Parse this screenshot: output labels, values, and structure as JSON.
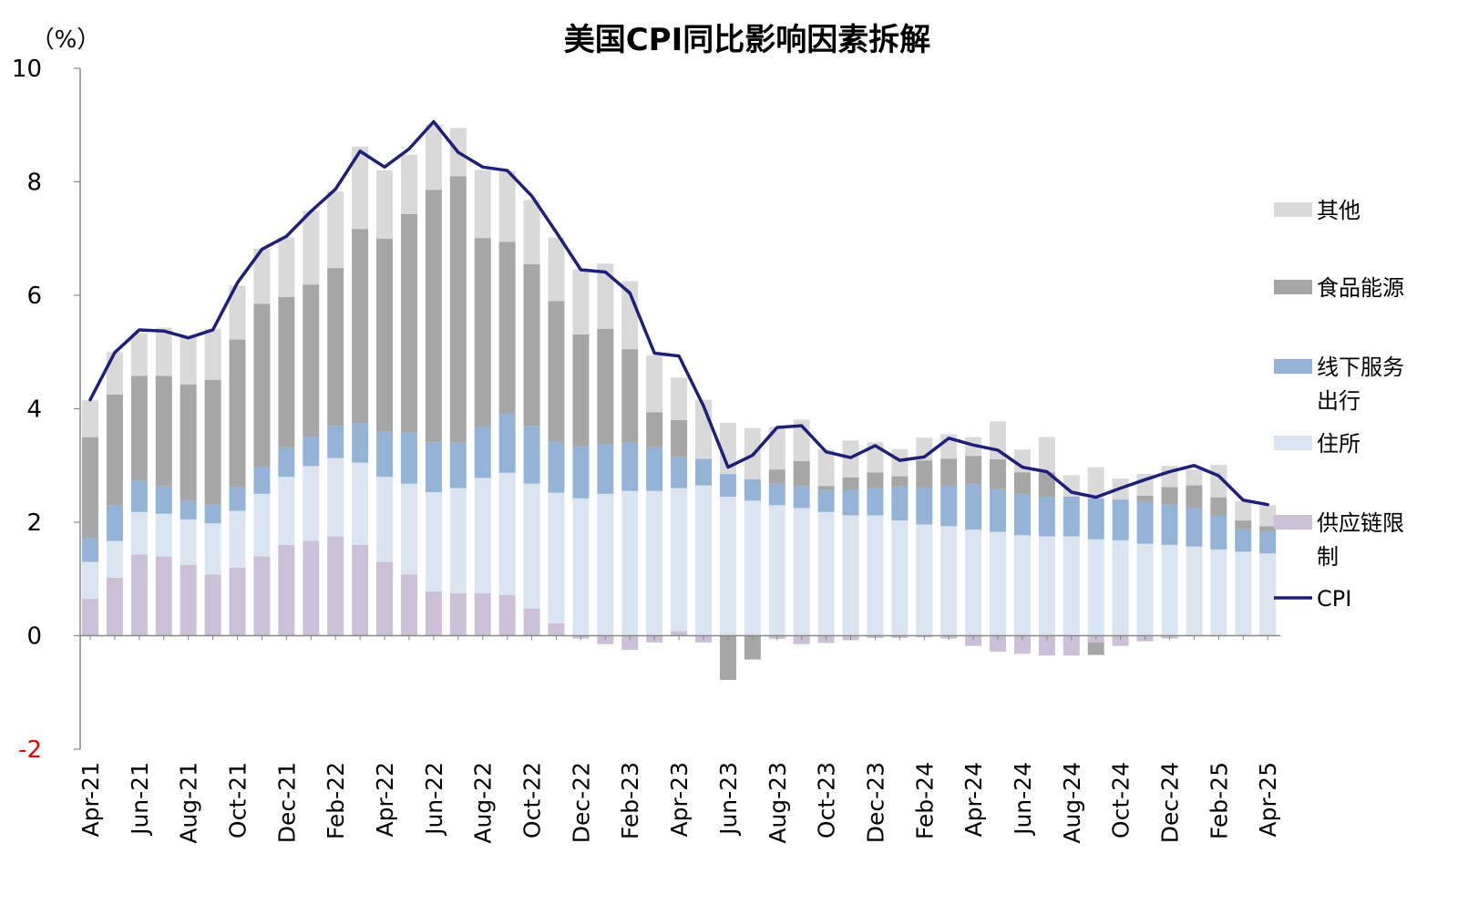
{
  "chart_data": {
    "type": "bar",
    "stacked": true,
    "title": "美国CPI同比影响因素拆解",
    "ylabel": "（%）",
    "ylim": [
      -2,
      10
    ],
    "yticks": [
      "-2",
      "0",
      "2",
      "4",
      "6",
      "8",
      "10"
    ],
    "grid": false,
    "legend_position": "right",
    "categories": [
      "Apr-21",
      "May-21",
      "Jun-21",
      "Jul-21",
      "Aug-21",
      "Sep-21",
      "Oct-21",
      "Nov-21",
      "Dec-21",
      "Jan-22",
      "Feb-22",
      "Mar-22",
      "Apr-22",
      "May-22",
      "Jun-22",
      "Jul-22",
      "Aug-22",
      "Sep-22",
      "Oct-22",
      "Nov-22",
      "Dec-22",
      "Jan-23",
      "Feb-23",
      "Mar-23",
      "Apr-23",
      "May-23",
      "Jun-23",
      "Jul-23",
      "Aug-23",
      "Sep-23",
      "Oct-23",
      "Nov-23",
      "Dec-23",
      "Jan-24",
      "Feb-24",
      "Mar-24",
      "Apr-24",
      "May-24",
      "Jun-24",
      "Jul-24",
      "Aug-24",
      "Sep-24",
      "Oct-24",
      "Nov-24",
      "Dec-24",
      "Jan-25",
      "Feb-25",
      "Mar-25",
      "Apr-25"
    ],
    "xtick_labels": [
      "Apr-21",
      "Jun-21",
      "Aug-21",
      "Oct-21",
      "Dec-21",
      "Feb-22",
      "Apr-22",
      "Jun-22",
      "Aug-22",
      "Oct-22",
      "Dec-22",
      "Feb-23",
      "Apr-23",
      "Jun-23",
      "Aug-23",
      "Oct-23",
      "Dec-23",
      "Feb-24",
      "Apr-24",
      "Jun-24",
      "Aug-24",
      "Oct-24",
      "Dec-24",
      "Feb-25",
      "Apr-25"
    ],
    "series": [
      {
        "name": "供应链限制",
        "color": "#ccc0d9",
        "values": [
          0.65,
          1.02,
          1.43,
          1.4,
          1.25,
          1.08,
          1.2,
          1.4,
          1.6,
          1.67,
          1.75,
          1.6,
          1.3,
          1.08,
          0.78,
          0.75,
          0.75,
          0.72,
          0.48,
          0.22,
          -0.05,
          -0.15,
          -0.25,
          -0.12,
          0.08,
          -0.12,
          0.0,
          0.0,
          -0.06,
          -0.15,
          -0.13,
          -0.08,
          -0.04,
          -0.04,
          -0.03,
          -0.05,
          -0.18,
          -0.28,
          -0.32,
          -0.35,
          -0.35,
          -0.12,
          -0.18,
          -0.1,
          -0.05,
          0.0,
          0.0,
          0.0,
          0.0
        ]
      },
      {
        "name": "住所",
        "color": "#dbe5f1",
        "values": [
          0.65,
          0.65,
          0.75,
          0.75,
          0.8,
          0.9,
          1.0,
          1.1,
          1.2,
          1.32,
          1.38,
          1.45,
          1.5,
          1.6,
          1.75,
          1.85,
          2.03,
          2.15,
          2.2,
          2.3,
          2.42,
          2.5,
          2.55,
          2.55,
          2.52,
          2.65,
          2.45,
          2.38,
          2.3,
          2.25,
          2.18,
          2.12,
          2.12,
          2.03,
          1.96,
          1.93,
          1.87,
          1.83,
          1.77,
          1.75,
          1.75,
          1.7,
          1.68,
          1.62,
          1.6,
          1.57,
          1.52,
          1.48,
          1.45
        ]
      },
      {
        "name": "线下服务出行",
        "color": "#95b3d7",
        "values": [
          0.42,
          0.63,
          0.55,
          0.48,
          0.33,
          0.33,
          0.42,
          0.47,
          0.52,
          0.52,
          0.57,
          0.7,
          0.8,
          0.9,
          0.88,
          0.8,
          0.9,
          1.05,
          1.02,
          0.9,
          0.92,
          0.88,
          0.85,
          0.77,
          0.55,
          0.47,
          0.4,
          0.38,
          0.38,
          0.38,
          0.38,
          0.45,
          0.48,
          0.6,
          0.65,
          0.72,
          0.8,
          0.75,
          0.73,
          0.7,
          0.7,
          0.72,
          0.72,
          0.75,
          0.72,
          0.68,
          0.6,
          0.4,
          0.38
        ]
      },
      {
        "name": "食品能源",
        "color": "#a6a6a6",
        "values": [
          1.78,
          1.95,
          1.85,
          1.95,
          2.05,
          2.2,
          2.6,
          2.88,
          2.65,
          2.68,
          2.78,
          3.42,
          3.4,
          3.85,
          4.45,
          4.7,
          3.33,
          3.02,
          2.85,
          2.48,
          1.97,
          2.03,
          1.65,
          0.62,
          0.65,
          0.0,
          -0.78,
          -0.42,
          0.25,
          0.45,
          0.08,
          0.22,
          0.28,
          0.18,
          0.48,
          0.47,
          0.5,
          0.53,
          0.38,
          0.43,
          0.0,
          -0.22,
          0.0,
          0.1,
          0.3,
          0.4,
          0.32,
          0.15,
          0.1
        ]
      },
      {
        "name": "其他",
        "color": "#d9d9d9",
        "values": [
          0.65,
          0.75,
          0.75,
          0.85,
          0.85,
          0.9,
          0.95,
          0.97,
          1.05,
          1.3,
          1.35,
          1.45,
          1.2,
          1.05,
          1.15,
          0.85,
          1.2,
          1.25,
          1.13,
          1.12,
          1.15,
          1.15,
          1.2,
          1.0,
          0.75,
          1.04,
          0.9,
          0.9,
          0.75,
          0.73,
          0.64,
          0.65,
          0.53,
          0.48,
          0.4,
          0.43,
          0.33,
          0.67,
          0.4,
          0.62,
          0.38,
          0.55,
          0.37,
          0.38,
          0.37,
          0.28,
          0.57,
          0.34,
          0.37
        ]
      }
    ],
    "line": {
      "name": "CPI",
      "color": "#1f1f7a",
      "values": [
        4.16,
        4.99,
        5.39,
        5.37,
        5.25,
        5.39,
        6.22,
        6.81,
        7.04,
        7.48,
        7.87,
        8.54,
        8.26,
        8.58,
        9.06,
        8.52,
        8.26,
        8.2,
        7.75,
        7.11,
        6.45,
        6.41,
        6.04,
        4.98,
        4.93,
        4.05,
        2.97,
        3.18,
        3.67,
        3.7,
        3.24,
        3.14,
        3.35,
        3.09,
        3.15,
        3.48,
        3.36,
        3.27,
        2.97,
        2.89,
        2.53,
        2.44,
        2.6,
        2.75,
        2.89,
        3.0,
        2.82,
        2.39,
        2.31
      ]
    }
  }
}
